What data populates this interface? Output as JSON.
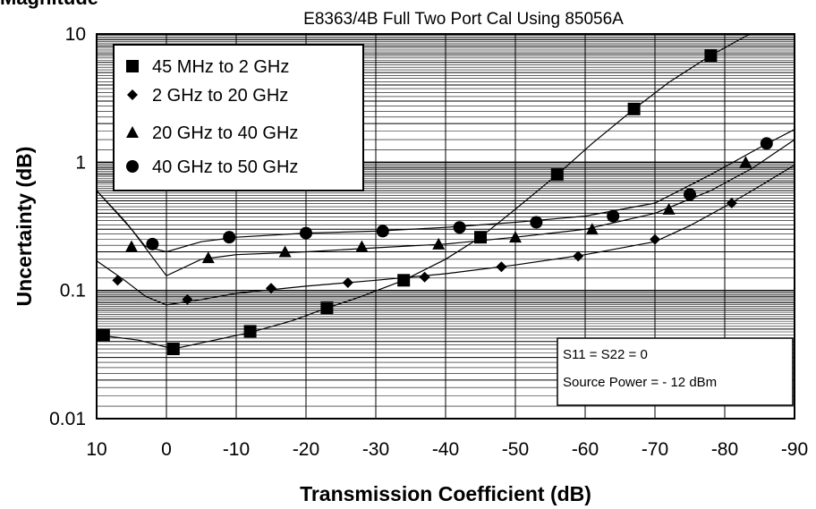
{
  "chart_data": {
    "type": "scatter",
    "top_label_fragment": "Magnitude",
    "title": "E8363/4B Full Two Port Cal Using 85056A",
    "xlabel": "Transmission Coefficient (dB)",
    "ylabel": "Uncertainty (dB)",
    "x_range": [
      10,
      -90
    ],
    "y_range": [
      0.01,
      10
    ],
    "y_scale": "log",
    "x_ticks": [
      10,
      0,
      -10,
      -20,
      -30,
      -40,
      -50,
      -60,
      -70,
      -80,
      -90
    ],
    "x_tick_labels": [
      "10",
      "0",
      "-10",
      "-20",
      "-30",
      "-40",
      "-50",
      "-60",
      "-70",
      "-80",
      "-90"
    ],
    "y_ticks": [
      0.01,
      0.1,
      1,
      10
    ],
    "y_tick_labels": [
      "0.01",
      "0.1",
      "1",
      "10"
    ],
    "grid": true,
    "legend_position": "top-left",
    "notes": [
      "S11 = S22 = 0",
      "Source Power = - 12 dBm"
    ],
    "series": [
      {
        "name": "45 MHz to 2 GHz",
        "marker": "square",
        "x": [
          9,
          -1,
          -12,
          -23,
          -34,
          -45,
          -56,
          -67,
          -78
        ],
        "y": [
          0.045,
          0.035,
          0.048,
          0.073,
          0.12,
          0.26,
          0.8,
          2.6,
          6.8
        ],
        "curve": {
          "x": [
            10,
            4,
            -1,
            -6,
            -12,
            -18,
            -23,
            -28,
            -34,
            -40,
            -45,
            -50,
            -56,
            -61,
            -67,
            -72,
            -78,
            -83,
            -86
          ],
          "y": [
            0.045,
            0.041,
            0.035,
            0.04,
            0.047,
            0.058,
            0.073,
            0.09,
            0.12,
            0.175,
            0.26,
            0.43,
            0.8,
            1.4,
            2.6,
            4.2,
            6.8,
            9.6,
            11.5
          ]
        }
      },
      {
        "name": "2 GHz to 20 GHz",
        "marker": "diamond",
        "x": [
          7,
          -3,
          -15,
          -26,
          -37,
          -48,
          -59,
          -70,
          -81
        ],
        "y": [
          0.12,
          0.085,
          0.104,
          0.115,
          0.127,
          0.153,
          0.185,
          0.25,
          0.48
        ],
        "curve": {
          "x": [
            10,
            6,
            3,
            0,
            -5,
            -10,
            -20,
            -30,
            -40,
            -50,
            -60,
            -70,
            -75,
            -80,
            -85,
            -90
          ],
          "y": [
            0.17,
            0.12,
            0.09,
            0.077,
            0.085,
            0.095,
            0.108,
            0.12,
            0.135,
            0.158,
            0.19,
            0.24,
            0.32,
            0.45,
            0.65,
            0.95
          ]
        }
      },
      {
        "name": "20 GHz to 40 GHz",
        "marker": "triangle",
        "x": [
          5,
          -6,
          -17,
          -28,
          -39,
          -50,
          -61,
          -72,
          -83
        ],
        "y": [
          0.22,
          0.18,
          0.2,
          0.22,
          0.23,
          0.26,
          0.3,
          0.43,
          1.0
        ],
        "curve": {
          "x": [
            10,
            5,
            0,
            -5,
            -10,
            -20,
            -30,
            -40,
            -50,
            -60,
            -70,
            -78,
            -84,
            -90
          ],
          "y": [
            0.6,
            0.3,
            0.13,
            0.175,
            0.19,
            0.2,
            0.215,
            0.23,
            0.26,
            0.3,
            0.4,
            0.6,
            0.9,
            1.5
          ]
        }
      },
      {
        "name": "40 GHz to 50 GHz",
        "marker": "circle",
        "x": [
          2,
          -9,
          -20,
          -31,
          -42,
          -53,
          -64,
          -75,
          -86
        ],
        "y": [
          0.23,
          0.26,
          0.28,
          0.29,
          0.31,
          0.34,
          0.38,
          0.56,
          1.4
        ],
        "curve": {
          "x": [
            10,
            6,
            3,
            0,
            -5,
            -10,
            -20,
            -30,
            -40,
            -50,
            -60,
            -70,
            -78,
            -85,
            -90
          ],
          "y": [
            0.6,
            0.35,
            0.22,
            0.2,
            0.24,
            0.26,
            0.28,
            0.29,
            0.31,
            0.34,
            0.38,
            0.48,
            0.8,
            1.3,
            1.8
          ]
        }
      }
    ]
  }
}
